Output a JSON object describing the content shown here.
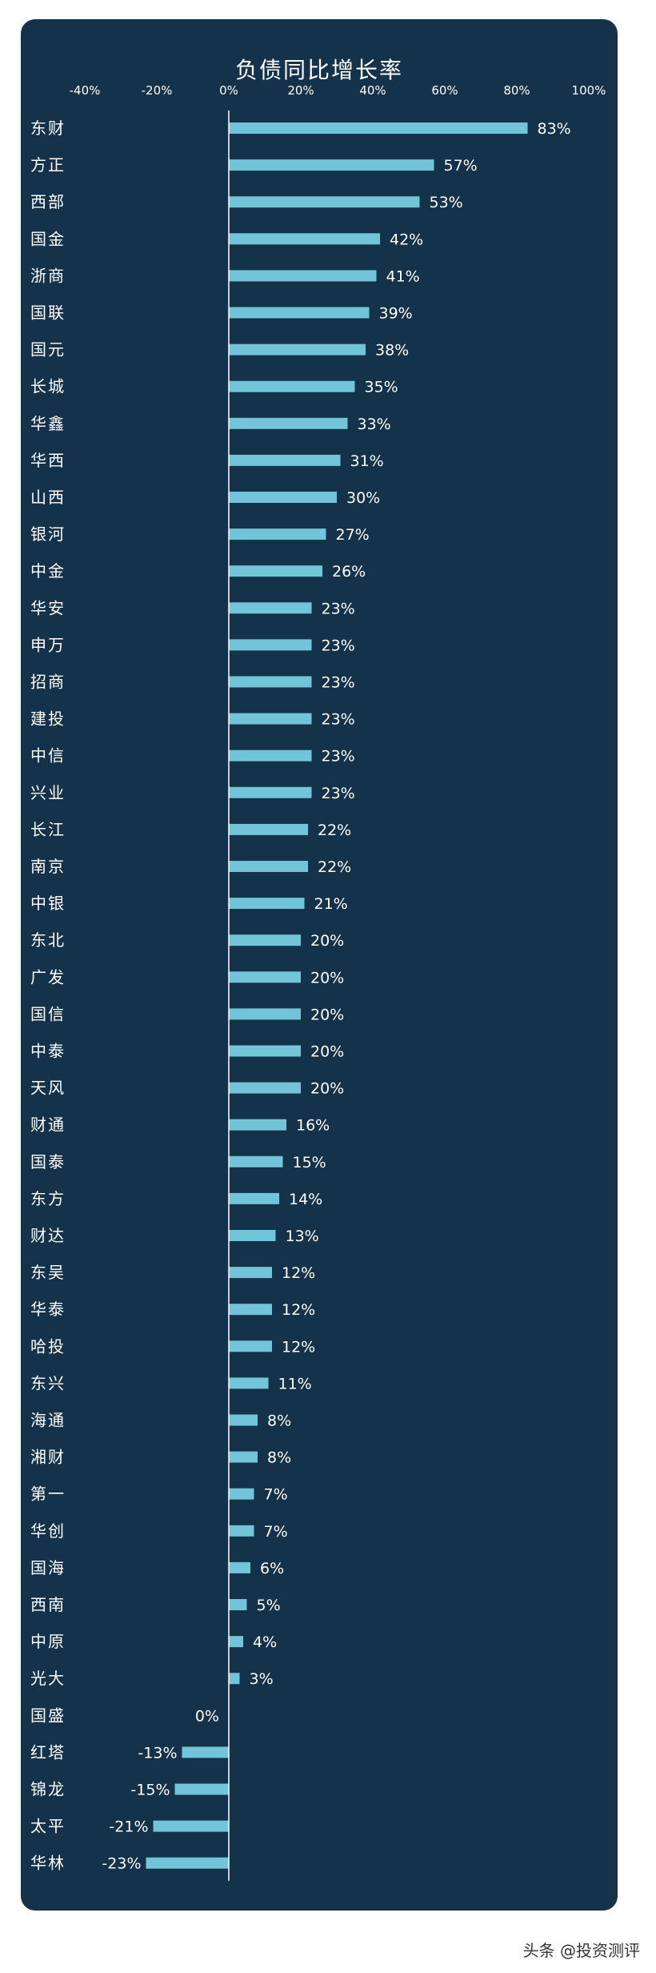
{
  "chart_data": {
    "type": "bar",
    "orientation": "horizontal",
    "title": "负债同比增长率",
    "xlabel": "",
    "ylabel": "",
    "xlim": [
      -40,
      100
    ],
    "x_ticks": [
      "-40%",
      "-20%",
      "0%",
      "20%",
      "40%",
      "60%",
      "80%",
      "100%"
    ],
    "x_tick_values": [
      -40,
      -20,
      0,
      20,
      40,
      60,
      80,
      100
    ],
    "categories": [
      "东财",
      "方正",
      "西部",
      "国金",
      "浙商",
      "国联",
      "国元",
      "长城",
      "华鑫",
      "华西",
      "山西",
      "银河",
      "中金",
      "华安",
      "申万",
      "招商",
      "建投",
      "中信",
      "兴业",
      "长江",
      "南京",
      "中银",
      "东北",
      "广发",
      "国信",
      "中泰",
      "天风",
      "财通",
      "国泰",
      "东方",
      "财达",
      "东吴",
      "华泰",
      "哈投",
      "东兴",
      "海通",
      "湘财",
      "第一",
      "华创",
      "国海",
      "西南",
      "中原",
      "光大",
      "国盛",
      "红塔",
      "锦龙",
      "太平",
      "华林"
    ],
    "values": [
      83,
      57,
      53,
      42,
      41,
      39,
      38,
      35,
      33,
      31,
      30,
      27,
      26,
      23,
      23,
      23,
      23,
      23,
      23,
      22,
      22,
      21,
      20,
      20,
      20,
      20,
      20,
      16,
      15,
      14,
      13,
      12,
      12,
      12,
      11,
      8,
      8,
      7,
      7,
      6,
      5,
      4,
      3,
      0,
      -13,
      -15,
      -21,
      -23
    ],
    "value_labels": [
      "83%",
      "57%",
      "53%",
      "42%",
      "41%",
      "39%",
      "38%",
      "35%",
      "33%",
      "31%",
      "30%",
      "27%",
      "26%",
      "23%",
      "23%",
      "23%",
      "23%",
      "23%",
      "23%",
      "22%",
      "22%",
      "21%",
      "20%",
      "20%",
      "20%",
      "20%",
      "20%",
      "16%",
      "15%",
      "14%",
      "13%",
      "12%",
      "12%",
      "12%",
      "11%",
      "8%",
      "8%",
      "7%",
      "7%",
      "6%",
      "5%",
      "4%",
      "3%",
      "0%",
      "-13%",
      "-15%",
      "-21%",
      "-23%"
    ],
    "grid": false,
    "legend": "none",
    "colors": {
      "background": "#14324a",
      "bar": "#72c4d8",
      "text": "#ffffff",
      "axis": "#ffffff"
    }
  },
  "watermark": "头条 @投资测评"
}
